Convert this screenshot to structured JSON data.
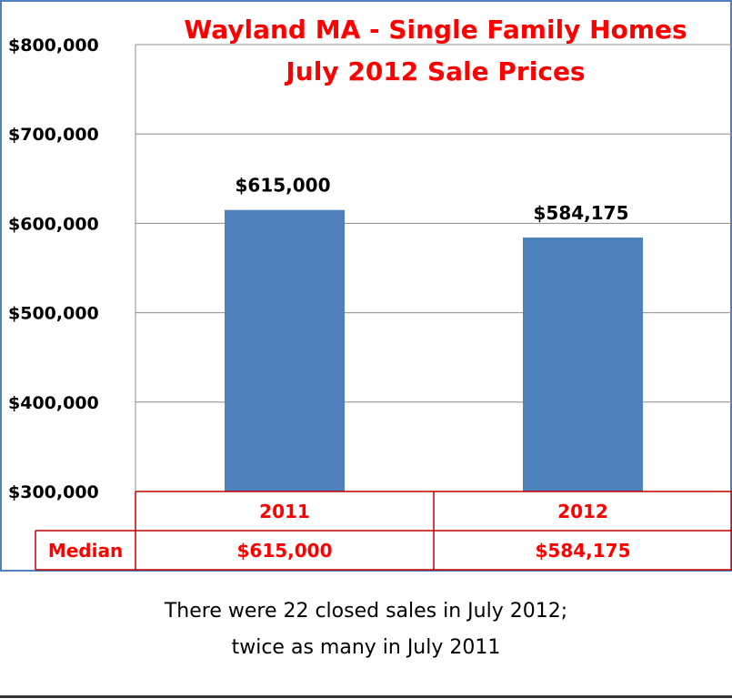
{
  "chart_data": {
    "type": "bar",
    "title": [
      "Wayland MA - Single Family Homes",
      "July 2012 Sale Prices"
    ],
    "title_color": "#ff0000",
    "categories": [
      "2011",
      "2012"
    ],
    "series": [
      {
        "values": [
          615000,
          584175
        ],
        "color": "#4f81bd"
      }
    ],
    "data_labels": [
      "$615,000",
      "$584,175"
    ],
    "ylim": [
      300000,
      800000
    ],
    "yticks": [
      300000,
      400000,
      500000,
      600000,
      700000,
      800000
    ],
    "ytick_labels": [
      "$300,000",
      "$400,000",
      "$500,000",
      "$600,000",
      "$700,000",
      "$800,000"
    ],
    "grid": true,
    "data_table": {
      "row_label": "Median",
      "values": [
        "$615,000",
        "$584,175"
      ],
      "text_color": "#ff0000",
      "border_color": "#c00000"
    }
  },
  "footer": {
    "lines": [
      "There were 22 closed sales in July 2012;",
      "twice as many in July 2011"
    ]
  }
}
